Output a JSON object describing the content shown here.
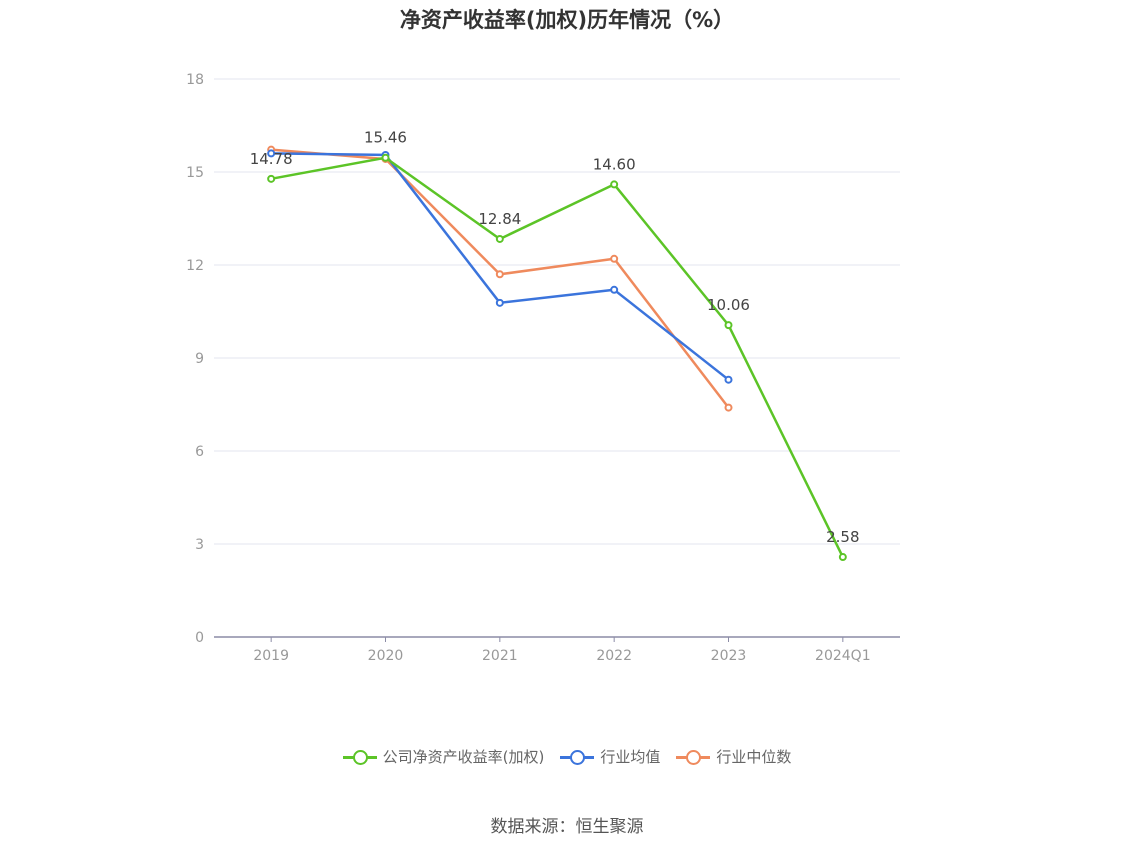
{
  "chart_data": {
    "type": "line",
    "title": "净资产收益率(加权)历年情况（%）",
    "categories": [
      "2019",
      "2020",
      "2021",
      "2022",
      "2023",
      "2024Q1"
    ],
    "ylim": [
      0,
      18
    ],
    "yticks": [
      0,
      3,
      6,
      9,
      12,
      15,
      18
    ],
    "grid": true,
    "legend_position": "bottom",
    "series": [
      {
        "name": "公司净资产收益率(加权)",
        "color": "#5cc427",
        "values": [
          14.78,
          15.46,
          12.84,
          14.6,
          10.06,
          2.58
        ],
        "labels": [
          "14.78",
          "15.46",
          "12.84",
          "14.60",
          "10.06",
          "2.58"
        ]
      },
      {
        "name": "行业均值",
        "color": "#3b74dc",
        "values": [
          15.6,
          15.55,
          10.78,
          11.2,
          8.3,
          null
        ]
      },
      {
        "name": "行业中位数",
        "color": "#ef8a5d",
        "values": [
          15.72,
          15.42,
          11.7,
          12.2,
          7.4,
          null
        ]
      }
    ]
  },
  "legend": {
    "items": [
      {
        "label": "公司净资产收益率(加权)",
        "color": "#5cc427"
      },
      {
        "label": "行业均值",
        "color": "#3b74dc"
      },
      {
        "label": "行业中位数",
        "color": "#ef8a5d"
      }
    ]
  },
  "source": "数据来源：恒生聚源"
}
